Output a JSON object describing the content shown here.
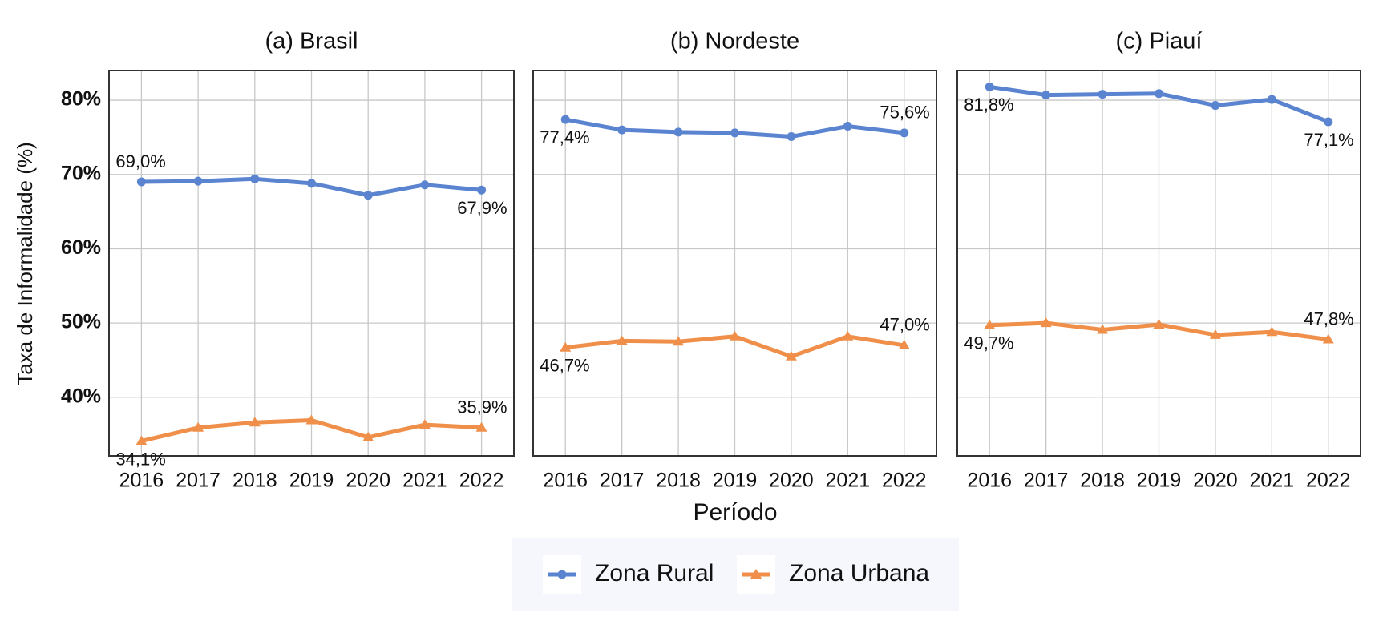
{
  "chart_data": [
    {
      "type": "line",
      "title": "(a) Brasil",
      "y_label": "Taxa de Informalidade (%)",
      "categories": [
        "2016",
        "2017",
        "2018",
        "2019",
        "2020",
        "2021",
        "2022"
      ],
      "series": [
        {
          "name": "Zona Rural",
          "color": "#5b84d0",
          "marker": "circle",
          "values": [
            69.0,
            69.1,
            69.4,
            68.8,
            67.2,
            68.6,
            67.9
          ],
          "value_labels": [
            "69,0%",
            null,
            null,
            null,
            null,
            null,
            "67,9%"
          ]
        },
        {
          "name": "Zona Urbana",
          "color": "#ef8f4a",
          "marker": "triangle",
          "values": [
            34.1,
            35.9,
            36.6,
            36.9,
            34.6,
            36.3,
            35.9
          ],
          "value_labels": [
            "34,1%",
            null,
            null,
            null,
            null,
            null,
            "35,9%"
          ]
        }
      ],
      "ylim": [
        32.1,
        84.0
      ],
      "yticks": [
        {
          "value": 40,
          "label": "40%"
        },
        {
          "value": 50,
          "label": "50%"
        },
        {
          "value": 60,
          "label": "60%"
        },
        {
          "value": 70,
          "label": "70%"
        },
        {
          "value": 80,
          "label": "80%"
        }
      ],
      "grid": true
    },
    {
      "type": "line",
      "title": "(b) Nordeste",
      "x_label": "Período",
      "categories": [
        "2016",
        "2017",
        "2018",
        "2019",
        "2020",
        "2021",
        "2022"
      ],
      "series": [
        {
          "color": "#5b84d0",
          "marker": "circle",
          "values": [
            77.4,
            76.0,
            75.7,
            75.6,
            75.1,
            76.5,
            75.6
          ],
          "value_labels": [
            "77,4%",
            null,
            null,
            null,
            null,
            null,
            "75,6%"
          ]
        },
        {
          "color": "#ef8f4a",
          "marker": "triangle",
          "values": [
            46.7,
            47.6,
            47.5,
            48.2,
            45.5,
            48.2,
            47.0
          ],
          "value_labels": [
            "46,7%",
            null,
            null,
            null,
            null,
            null,
            "47,0%"
          ]
        }
      ],
      "ylim": [
        32.1,
        84.0
      ],
      "yticks": [
        40,
        50,
        60,
        70,
        80
      ],
      "grid": true
    },
    {
      "type": "line",
      "title": "(c) Piauí",
      "categories": [
        "2016",
        "2017",
        "2018",
        "2019",
        "2020",
        "2021",
        "2022"
      ],
      "series": [
        {
          "color": "#5b84d0",
          "marker": "circle",
          "values": [
            81.8,
            80.7,
            80.8,
            80.9,
            79.3,
            80.1,
            77.1
          ],
          "value_labels": [
            "81,8%",
            null,
            null,
            null,
            null,
            null,
            "77,1%"
          ]
        },
        {
          "color": "#ef8f4a",
          "marker": "triangle",
          "values": [
            49.7,
            50.0,
            49.1,
            49.8,
            48.4,
            48.8,
            47.8
          ],
          "value_labels": [
            "49,7%",
            null,
            null,
            null,
            null,
            null,
            "47,8%"
          ]
        }
      ],
      "ylim": [
        32.1,
        84.0
      ],
      "yticks": [
        40,
        50,
        60,
        70,
        80
      ],
      "grid": true
    }
  ]
}
